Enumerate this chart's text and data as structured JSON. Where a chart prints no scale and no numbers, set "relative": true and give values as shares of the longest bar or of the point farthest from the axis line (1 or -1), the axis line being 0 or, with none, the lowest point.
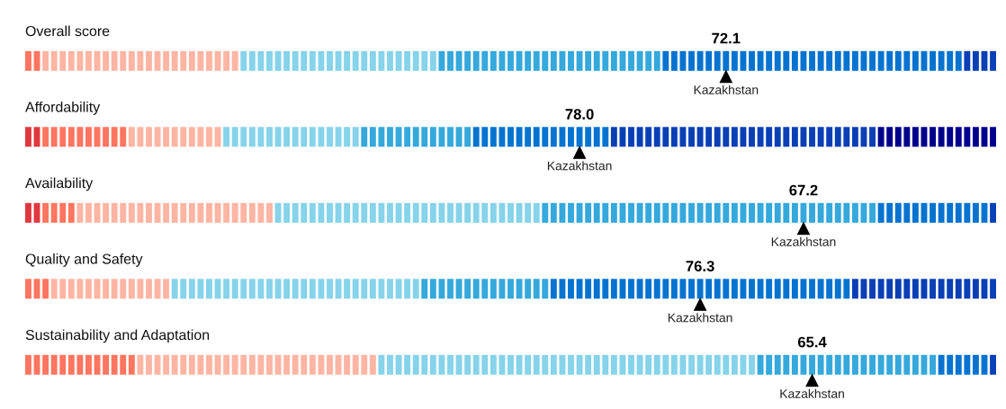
{
  "chart_data": [
    {
      "type": "bar",
      "relative": true,
      "title": "Overall score",
      "annotations": [
        {
          "text": "72.1",
          "x": "Kazakhstan",
          "y": 1
        }
      ],
      "categories": [
        null,
        null,
        null,
        null,
        null,
        null,
        null,
        null,
        null,
        null,
        null,
        null,
        null,
        null,
        null,
        null,
        null,
        null,
        null,
        null,
        null,
        null,
        null,
        null,
        null,
        null,
        null,
        null,
        null,
        null,
        null,
        null,
        null,
        null,
        null,
        null,
        null,
        null,
        null,
        null,
        null,
        null,
        null,
        null,
        null,
        null,
        null,
        null,
        null,
        null,
        null,
        null,
        null,
        null,
        null,
        null,
        null,
        null,
        null,
        null,
        null,
        null,
        null,
        null,
        null,
        null,
        null,
        null,
        null,
        null,
        null,
        null,
        null,
        null,
        null,
        null,
        null,
        null,
        null,
        null,
        null,
        "Kazakhstan",
        null,
        null,
        null,
        null,
        null,
        null,
        null,
        null,
        null,
        null,
        null,
        null,
        null,
        null,
        null,
        null,
        null,
        null,
        null,
        null,
        null,
        null,
        null,
        null,
        null,
        null,
        null,
        null,
        null,
        null,
        null
      ],
      "values": [
        1,
        1,
        1,
        1,
        1,
        1,
        1,
        1,
        1,
        1,
        1,
        1,
        1,
        1,
        1,
        1,
        1,
        1,
        1,
        1,
        1,
        1,
        1,
        1,
        1,
        1,
        1,
        1,
        1,
        1,
        1,
        1,
        1,
        1,
        1,
        1,
        1,
        1,
        1,
        1,
        1,
        1,
        1,
        1,
        1,
        1,
        1,
        1,
        1,
        1,
        1,
        1,
        1,
        1,
        1,
        1,
        1,
        1,
        1,
        1,
        1,
        1,
        1,
        1,
        1,
        1,
        1,
        1,
        1,
        1,
        1,
        1,
        1,
        1,
        1,
        1,
        1,
        1,
        1,
        1,
        1,
        1,
        1,
        1,
        1,
        1,
        1,
        1,
        1,
        1,
        1,
        1,
        1,
        1,
        1,
        1,
        1,
        1,
        1,
        1,
        1,
        1,
        1,
        1,
        1,
        1,
        1,
        1,
        1,
        1,
        1,
        1,
        1
      ],
      "colors": [
        "#ff7560",
        "#ff7560",
        "#ffb5a3",
        "#ffb5a3",
        "#ffb5a3",
        "#ffb5a3",
        "#ffb5a3",
        "#ffb5a3",
        "#ffb5a3",
        "#ffb5a3",
        "#ffb5a3",
        "#ffb5a3",
        "#ffb5a3",
        "#ffb5a3",
        "#ffb5a3",
        "#ffb5a3",
        "#ffb5a3",
        "#ffb5a3",
        "#ffb5a3",
        "#ffb5a3",
        "#ffb5a3",
        "#ffb5a3",
        "#ffb5a3",
        "#ffb5a3",
        "#ffb5a3",
        "#86d3ea",
        "#86d3ea",
        "#86d3ea",
        "#86d3ea",
        "#86d3ea",
        "#86d3ea",
        "#86d3ea",
        "#86d3ea",
        "#86d3ea",
        "#86d3ea",
        "#86d3ea",
        "#86d3ea",
        "#86d3ea",
        "#86d3ea",
        "#86d3ea",
        "#86d3ea",
        "#86d3ea",
        "#86d3ea",
        "#86d3ea",
        "#86d3ea",
        "#86d3ea",
        "#86d3ea",
        "#86d3ea",
        "#35a8dc",
        "#35a8dc",
        "#35a8dc",
        "#35a8dc",
        "#35a8dc",
        "#35a8dc",
        "#35a8dc",
        "#35a8dc",
        "#35a8dc",
        "#35a8dc",
        "#35a8dc",
        "#35a8dc",
        "#35a8dc",
        "#35a8dc",
        "#35a8dc",
        "#35a8dc",
        "#35a8dc",
        "#35a8dc",
        "#35a8dc",
        "#35a8dc",
        "#35a8dc",
        "#35a8dc",
        "#35a8dc",
        "#35a8dc",
        "#35a8dc",
        "#35a8dc",
        "#0673d0",
        "#0673d0",
        "#0673d0",
        "#0673d0",
        "#0673d0",
        "#0673d0",
        "#0673d0",
        "#0673d0",
        "#0673d0",
        "#0673d0",
        "#0673d0",
        "#0673d0",
        "#0673d0",
        "#0673d0",
        "#0673d0",
        "#0673d0",
        "#0673d0",
        "#0673d0",
        "#0673d0",
        "#0673d0",
        "#0673d0",
        "#0673d0",
        "#0673d0",
        "#0673d0",
        "#0673d0",
        "#0673d0",
        "#0673d0",
        "#0673d0",
        "#0673d0",
        "#0673d0",
        "#0673d0",
        "#0673d0",
        "#0673d0",
        "#0673d0",
        "#0673d0",
        "#0a3fb5",
        "#0a3fb5",
        "#0a3fb5",
        "#0a3fb5"
      ]
    },
    {
      "type": "bar",
      "relative": true,
      "title": "Affordability",
      "annotations": [
        {
          "text": "78.0",
          "x": "Kazakhstan",
          "y": 1
        }
      ],
      "categories": [
        null,
        null,
        null,
        null,
        null,
        null,
        null,
        null,
        null,
        null,
        null,
        null,
        null,
        null,
        null,
        null,
        null,
        null,
        null,
        null,
        null,
        null,
        null,
        null,
        null,
        null,
        null,
        null,
        null,
        null,
        null,
        null,
        null,
        null,
        null,
        null,
        null,
        null,
        null,
        null,
        null,
        null,
        null,
        null,
        null,
        null,
        null,
        null,
        null,
        null,
        null,
        null,
        null,
        null,
        null,
        null,
        null,
        null,
        null,
        null,
        null,
        null,
        null,
        null,
        "Kazakhstan",
        null,
        null,
        null,
        null,
        null,
        null,
        null,
        null,
        null,
        null,
        null,
        null,
        null,
        null,
        null,
        null,
        null,
        null,
        null,
        null,
        null,
        null,
        null,
        null,
        null,
        null,
        null,
        null,
        null,
        null,
        null,
        null,
        null,
        null,
        null,
        null,
        null,
        null,
        null,
        null,
        null,
        null,
        null,
        null,
        null,
        null,
        null,
        null
      ],
      "values": [
        1,
        1,
        1,
        1,
        1,
        1,
        1,
        1,
        1,
        1,
        1,
        1,
        1,
        1,
        1,
        1,
        1,
        1,
        1,
        1,
        1,
        1,
        1,
        1,
        1,
        1,
        1,
        1,
        1,
        1,
        1,
        1,
        1,
        1,
        1,
        1,
        1,
        1,
        1,
        1,
        1,
        1,
        1,
        1,
        1,
        1,
        1,
        1,
        1,
        1,
        1,
        1,
        1,
        1,
        1,
        1,
        1,
        1,
        1,
        1,
        1,
        1,
        1,
        1,
        1,
        1,
        1,
        1,
        1,
        1,
        1,
        1,
        1,
        1,
        1,
        1,
        1,
        1,
        1,
        1,
        1,
        1,
        1,
        1,
        1,
        1,
        1,
        1,
        1,
        1,
        1,
        1,
        1,
        1,
        1,
        1,
        1,
        1,
        1,
        1,
        1,
        1,
        1,
        1,
        1,
        1,
        1,
        1,
        1,
        1,
        1,
        1,
        1
      ],
      "colors": [
        "#e0383f",
        "#e0383f",
        "#ff7560",
        "#ff7560",
        "#ff7560",
        "#ff7560",
        "#ff7560",
        "#ff7560",
        "#ff7560",
        "#ff7560",
        "#ff7560",
        "#ff7560",
        "#ffb5a3",
        "#ffb5a3",
        "#ffb5a3",
        "#ffb5a3",
        "#ffb5a3",
        "#ffb5a3",
        "#ffb5a3",
        "#ffb5a3",
        "#ffb5a3",
        "#ffb5a3",
        "#ffb5a3",
        "#86d3ea",
        "#86d3ea",
        "#86d3ea",
        "#86d3ea",
        "#86d3ea",
        "#86d3ea",
        "#86d3ea",
        "#86d3ea",
        "#86d3ea",
        "#86d3ea",
        "#86d3ea",
        "#86d3ea",
        "#86d3ea",
        "#86d3ea",
        "#86d3ea",
        "#86d3ea",
        "#35a8dc",
        "#35a8dc",
        "#35a8dc",
        "#35a8dc",
        "#35a8dc",
        "#35a8dc",
        "#35a8dc",
        "#35a8dc",
        "#35a8dc",
        "#35a8dc",
        "#35a8dc",
        "#35a8dc",
        "#35a8dc",
        "#0673d0",
        "#0673d0",
        "#0673d0",
        "#0673d0",
        "#0673d0",
        "#0673d0",
        "#0673d0",
        "#0673d0",
        "#0673d0",
        "#0673d0",
        "#0673d0",
        "#0673d0",
        "#0673d0",
        "#0673d0",
        "#0673d0",
        "#0673d0",
        "#0a3fb5",
        "#0a3fb5",
        "#0a3fb5",
        "#0a3fb5",
        "#0a3fb5",
        "#0a3fb5",
        "#0a3fb5",
        "#0a3fb5",
        "#0a3fb5",
        "#0a3fb5",
        "#0a3fb5",
        "#0a3fb5",
        "#0a3fb5",
        "#0a3fb5",
        "#0a3fb5",
        "#0a3fb5",
        "#0a3fb5",
        "#0a3fb5",
        "#0a3fb5",
        "#0a3fb5",
        "#0a3fb5",
        "#0a3fb5",
        "#0a3fb5",
        "#0a3fb5",
        "#0a3fb5",
        "#0a3fb5",
        "#0a3fb5",
        "#0a3fb5",
        "#0a3fb5",
        "#0a3fb5",
        "#0a3fb5",
        "#00008c",
        "#00008c",
        "#00008c",
        "#00008c",
        "#00008c",
        "#00008c",
        "#00008c",
        "#00008c",
        "#00008c",
        "#00008c",
        "#00008c",
        "#00008c",
        "#00008c",
        "#00008c"
      ]
    },
    {
      "type": "bar",
      "relative": true,
      "title": "Availability",
      "annotations": [
        {
          "text": "67.2",
          "x": "Kazakhstan",
          "y": 1
        }
      ],
      "categories": [
        null,
        null,
        null,
        null,
        null,
        null,
        null,
        null,
        null,
        null,
        null,
        null,
        null,
        null,
        null,
        null,
        null,
        null,
        null,
        null,
        null,
        null,
        null,
        null,
        null,
        null,
        null,
        null,
        null,
        null,
        null,
        null,
        null,
        null,
        null,
        null,
        null,
        null,
        null,
        null,
        null,
        null,
        null,
        null,
        null,
        null,
        null,
        null,
        null,
        null,
        null,
        null,
        null,
        null,
        null,
        null,
        null,
        null,
        null,
        null,
        null,
        null,
        null,
        null,
        null,
        null,
        null,
        null,
        null,
        null,
        null,
        null,
        null,
        null,
        null,
        null,
        null,
        null,
        null,
        null,
        null,
        null,
        null,
        null,
        null,
        null,
        null,
        null,
        null,
        null,
        "Kazakhstan",
        null,
        null,
        null,
        null,
        null,
        null,
        null,
        null,
        null,
        null,
        null,
        null,
        null,
        null,
        null,
        null,
        null,
        null,
        null,
        null,
        null,
        null
      ],
      "values": [
        1,
        1,
        1,
        1,
        1,
        1,
        1,
        1,
        1,
        1,
        1,
        1,
        1,
        1,
        1,
        1,
        1,
        1,
        1,
        1,
        1,
        1,
        1,
        1,
        1,
        1,
        1,
        1,
        1,
        1,
        1,
        1,
        1,
        1,
        1,
        1,
        1,
        1,
        1,
        1,
        1,
        1,
        1,
        1,
        1,
        1,
        1,
        1,
        1,
        1,
        1,
        1,
        1,
        1,
        1,
        1,
        1,
        1,
        1,
        1,
        1,
        1,
        1,
        1,
        1,
        1,
        1,
        1,
        1,
        1,
        1,
        1,
        1,
        1,
        1,
        1,
        1,
        1,
        1,
        1,
        1,
        1,
        1,
        1,
        1,
        1,
        1,
        1,
        1,
        1,
        1,
        1,
        1,
        1,
        1,
        1,
        1,
        1,
        1,
        1,
        1,
        1,
        1,
        1,
        1,
        1,
        1,
        1,
        1,
        1,
        1,
        1,
        1
      ],
      "colors": [
        "#e0383f",
        "#e0383f",
        "#ff7560",
        "#ff7560",
        "#ff7560",
        "#ff7560",
        "#ffb5a3",
        "#ffb5a3",
        "#ffb5a3",
        "#ffb5a3",
        "#ffb5a3",
        "#ffb5a3",
        "#ffb5a3",
        "#ffb5a3",
        "#ffb5a3",
        "#ffb5a3",
        "#ffb5a3",
        "#ffb5a3",
        "#ffb5a3",
        "#ffb5a3",
        "#ffb5a3",
        "#ffb5a3",
        "#ffb5a3",
        "#ffb5a3",
        "#ffb5a3",
        "#ffb5a3",
        "#ffb5a3",
        "#ffb5a3",
        "#ffb5a3",
        "#86d3ea",
        "#86d3ea",
        "#86d3ea",
        "#86d3ea",
        "#86d3ea",
        "#86d3ea",
        "#86d3ea",
        "#86d3ea",
        "#86d3ea",
        "#86d3ea",
        "#86d3ea",
        "#86d3ea",
        "#86d3ea",
        "#86d3ea",
        "#86d3ea",
        "#86d3ea",
        "#86d3ea",
        "#86d3ea",
        "#86d3ea",
        "#86d3ea",
        "#86d3ea",
        "#86d3ea",
        "#86d3ea",
        "#86d3ea",
        "#86d3ea",
        "#86d3ea",
        "#86d3ea",
        "#86d3ea",
        "#86d3ea",
        "#86d3ea",
        "#86d3ea",
        "#35a8dc",
        "#35a8dc",
        "#35a8dc",
        "#35a8dc",
        "#35a8dc",
        "#35a8dc",
        "#35a8dc",
        "#35a8dc",
        "#35a8dc",
        "#35a8dc",
        "#35a8dc",
        "#35a8dc",
        "#35a8dc",
        "#35a8dc",
        "#35a8dc",
        "#35a8dc",
        "#35a8dc",
        "#35a8dc",
        "#35a8dc",
        "#35a8dc",
        "#35a8dc",
        "#35a8dc",
        "#35a8dc",
        "#35a8dc",
        "#35a8dc",
        "#35a8dc",
        "#35a8dc",
        "#35a8dc",
        "#35a8dc",
        "#35a8dc",
        "#35a8dc",
        "#35a8dc",
        "#35a8dc",
        "#35a8dc",
        "#35a8dc",
        "#35a8dc",
        "#35a8dc",
        "#35a8dc",
        "#35a8dc",
        "#0673d0",
        "#0673d0",
        "#0673d0",
        "#0673d0",
        "#0673d0",
        "#0673d0",
        "#0673d0",
        "#0673d0",
        "#0673d0",
        "#0673d0",
        "#0673d0",
        "#0673d0",
        "#0673d0",
        "#0a3fb5"
      ]
    },
    {
      "type": "bar",
      "relative": true,
      "title": "Quality and Safety",
      "annotations": [
        {
          "text": "76.3",
          "x": "Kazakhstan",
          "y": 1
        }
      ],
      "categories": [
        null,
        null,
        null,
        null,
        null,
        null,
        null,
        null,
        null,
        null,
        null,
        null,
        null,
        null,
        null,
        null,
        null,
        null,
        null,
        null,
        null,
        null,
        null,
        null,
        null,
        null,
        null,
        null,
        null,
        null,
        null,
        null,
        null,
        null,
        null,
        null,
        null,
        null,
        null,
        null,
        null,
        null,
        null,
        null,
        null,
        null,
        null,
        null,
        null,
        null,
        null,
        null,
        null,
        null,
        null,
        null,
        null,
        null,
        null,
        null,
        null,
        null,
        null,
        null,
        null,
        null,
        null,
        null,
        null,
        null,
        null,
        null,
        null,
        null,
        null,
        null,
        null,
        null,
        "Kazakhstan",
        null,
        null,
        null,
        null,
        null,
        null,
        null,
        null,
        null,
        null,
        null,
        null,
        null,
        null,
        null,
        null,
        null,
        null,
        null,
        null,
        null,
        null,
        null,
        null,
        null,
        null,
        null,
        null,
        null,
        null,
        null,
        null,
        null,
        null
      ],
      "values": [
        1,
        1,
        1,
        1,
        1,
        1,
        1,
        1,
        1,
        1,
        1,
        1,
        1,
        1,
        1,
        1,
        1,
        1,
        1,
        1,
        1,
        1,
        1,
        1,
        1,
        1,
        1,
        1,
        1,
        1,
        1,
        1,
        1,
        1,
        1,
        1,
        1,
        1,
        1,
        1,
        1,
        1,
        1,
        1,
        1,
        1,
        1,
        1,
        1,
        1,
        1,
        1,
        1,
        1,
        1,
        1,
        1,
        1,
        1,
        1,
        1,
        1,
        1,
        1,
        1,
        1,
        1,
        1,
        1,
        1,
        1,
        1,
        1,
        1,
        1,
        1,
        1,
        1,
        1,
        1,
        1,
        1,
        1,
        1,
        1,
        1,
        1,
        1,
        1,
        1,
        1,
        1,
        1,
        1,
        1,
        1,
        1,
        1,
        1,
        1,
        1,
        1,
        1,
        1,
        1,
        1,
        1,
        1,
        1,
        1,
        1,
        1,
        1
      ],
      "colors": [
        "#ff7560",
        "#ff7560",
        "#ff7560",
        "#ffb5a3",
        "#ffb5a3",
        "#ffb5a3",
        "#ffb5a3",
        "#ffb5a3",
        "#ffb5a3",
        "#ffb5a3",
        "#ffb5a3",
        "#ffb5a3",
        "#ffb5a3",
        "#ffb5a3",
        "#ffb5a3",
        "#ffb5a3",
        "#ffb5a3",
        "#86d3ea",
        "#86d3ea",
        "#86d3ea",
        "#86d3ea",
        "#86d3ea",
        "#86d3ea",
        "#86d3ea",
        "#86d3ea",
        "#86d3ea",
        "#86d3ea",
        "#86d3ea",
        "#86d3ea",
        "#86d3ea",
        "#86d3ea",
        "#86d3ea",
        "#86d3ea",
        "#86d3ea",
        "#86d3ea",
        "#86d3ea",
        "#86d3ea",
        "#86d3ea",
        "#86d3ea",
        "#86d3ea",
        "#86d3ea",
        "#86d3ea",
        "#86d3ea",
        "#86d3ea",
        "#86d3ea",
        "#86d3ea",
        "#35a8dc",
        "#35a8dc",
        "#35a8dc",
        "#35a8dc",
        "#35a8dc",
        "#35a8dc",
        "#35a8dc",
        "#35a8dc",
        "#35a8dc",
        "#35a8dc",
        "#35a8dc",
        "#35a8dc",
        "#35a8dc",
        "#35a8dc",
        "#35a8dc",
        "#0673d0",
        "#0673d0",
        "#0673d0",
        "#0673d0",
        "#0673d0",
        "#0673d0",
        "#0673d0",
        "#0673d0",
        "#0673d0",
        "#0673d0",
        "#0673d0",
        "#0673d0",
        "#0673d0",
        "#0673d0",
        "#0673d0",
        "#0673d0",
        "#0673d0",
        "#0673d0",
        "#0673d0",
        "#0673d0",
        "#0673d0",
        "#0673d0",
        "#0673d0",
        "#0673d0",
        "#0673d0",
        "#0673d0",
        "#0673d0",
        "#0673d0",
        "#0673d0",
        "#0673d0",
        "#0673d0",
        "#0673d0",
        "#0673d0",
        "#0673d0",
        "#0673d0",
        "#0a3fb5",
        "#0a3fb5",
        "#0a3fb5",
        "#0a3fb5",
        "#0a3fb5",
        "#0a3fb5",
        "#0a3fb5",
        "#0a3fb5",
        "#0a3fb5",
        "#0a3fb5",
        "#0a3fb5",
        "#0a3fb5",
        "#0a3fb5",
        "#0a3fb5",
        "#0a3fb5",
        "#0a3fb5",
        "#0a3fb5"
      ]
    },
    {
      "type": "bar",
      "relative": true,
      "title": "Sustainability and Adaptation",
      "annotations": [
        {
          "text": "65.4",
          "x": "Kazakhstan",
          "y": 1
        }
      ],
      "categories": [
        null,
        null,
        null,
        null,
        null,
        null,
        null,
        null,
        null,
        null,
        null,
        null,
        null,
        null,
        null,
        null,
        null,
        null,
        null,
        null,
        null,
        null,
        null,
        null,
        null,
        null,
        null,
        null,
        null,
        null,
        null,
        null,
        null,
        null,
        null,
        null,
        null,
        null,
        null,
        null,
        null,
        null,
        null,
        null,
        null,
        null,
        null,
        null,
        null,
        null,
        null,
        null,
        null,
        null,
        null,
        null,
        null,
        null,
        null,
        null,
        null,
        null,
        null,
        null,
        null,
        null,
        null,
        null,
        null,
        null,
        null,
        null,
        null,
        null,
        null,
        null,
        null,
        null,
        null,
        null,
        null,
        null,
        null,
        null,
        null,
        null,
        null,
        null,
        null,
        null,
        null,
        "Kazakhstan",
        null,
        null,
        null,
        null,
        null,
        null,
        null,
        null,
        null,
        null,
        null,
        null,
        null,
        null,
        null,
        null,
        null,
        null,
        null,
        null,
        null
      ],
      "values": [
        1,
        1,
        1,
        1,
        1,
        1,
        1,
        1,
        1,
        1,
        1,
        1,
        1,
        1,
        1,
        1,
        1,
        1,
        1,
        1,
        1,
        1,
        1,
        1,
        1,
        1,
        1,
        1,
        1,
        1,
        1,
        1,
        1,
        1,
        1,
        1,
        1,
        1,
        1,
        1,
        1,
        1,
        1,
        1,
        1,
        1,
        1,
        1,
        1,
        1,
        1,
        1,
        1,
        1,
        1,
        1,
        1,
        1,
        1,
        1,
        1,
        1,
        1,
        1,
        1,
        1,
        1,
        1,
        1,
        1,
        1,
        1,
        1,
        1,
        1,
        1,
        1,
        1,
        1,
        1,
        1,
        1,
        1,
        1,
        1,
        1,
        1,
        1,
        1,
        1,
        1,
        1,
        1,
        1,
        1,
        1,
        1,
        1,
        1,
        1,
        1,
        1,
        1,
        1,
        1,
        1,
        1,
        1,
        1,
        1,
        1,
        1,
        1
      ],
      "colors": [
        "#ff7560",
        "#ff7560",
        "#ff7560",
        "#ff7560",
        "#ff7560",
        "#ff7560",
        "#ff7560",
        "#ff7560",
        "#ff7560",
        "#ff7560",
        "#ff7560",
        "#ff7560",
        "#ff7560",
        "#ffb5a3",
        "#ffb5a3",
        "#ffb5a3",
        "#ffb5a3",
        "#ffb5a3",
        "#ffb5a3",
        "#ffb5a3",
        "#ffb5a3",
        "#ffb5a3",
        "#ffb5a3",
        "#ffb5a3",
        "#ffb5a3",
        "#ffb5a3",
        "#ffb5a3",
        "#ffb5a3",
        "#ffb5a3",
        "#ffb5a3",
        "#ffb5a3",
        "#ffb5a3",
        "#ffb5a3",
        "#ffb5a3",
        "#ffb5a3",
        "#ffb5a3",
        "#ffb5a3",
        "#ffb5a3",
        "#ffb5a3",
        "#ffb5a3",
        "#ffb5a3",
        "#86d3ea",
        "#86d3ea",
        "#86d3ea",
        "#86d3ea",
        "#86d3ea",
        "#86d3ea",
        "#86d3ea",
        "#86d3ea",
        "#86d3ea",
        "#86d3ea",
        "#86d3ea",
        "#86d3ea",
        "#86d3ea",
        "#86d3ea",
        "#86d3ea",
        "#86d3ea",
        "#86d3ea",
        "#86d3ea",
        "#86d3ea",
        "#86d3ea",
        "#86d3ea",
        "#86d3ea",
        "#86d3ea",
        "#86d3ea",
        "#86d3ea",
        "#86d3ea",
        "#86d3ea",
        "#86d3ea",
        "#86d3ea",
        "#86d3ea",
        "#86d3ea",
        "#86d3ea",
        "#86d3ea",
        "#86d3ea",
        "#86d3ea",
        "#86d3ea",
        "#86d3ea",
        "#86d3ea",
        "#86d3ea",
        "#86d3ea",
        "#86d3ea",
        "#86d3ea",
        "#86d3ea",
        "#86d3ea",
        "#35a8dc",
        "#35a8dc",
        "#35a8dc",
        "#35a8dc",
        "#35a8dc",
        "#35a8dc",
        "#35a8dc",
        "#35a8dc",
        "#35a8dc",
        "#35a8dc",
        "#35a8dc",
        "#35a8dc",
        "#35a8dc",
        "#35a8dc",
        "#35a8dc",
        "#35a8dc",
        "#35a8dc",
        "#35a8dc",
        "#35a8dc",
        "#35a8dc",
        "#35a8dc",
        "#0673d0",
        "#0673d0",
        "#0673d0",
        "#0673d0",
        "#0673d0",
        "#0673d0",
        "#0a3fb5"
      ]
    }
  ]
}
